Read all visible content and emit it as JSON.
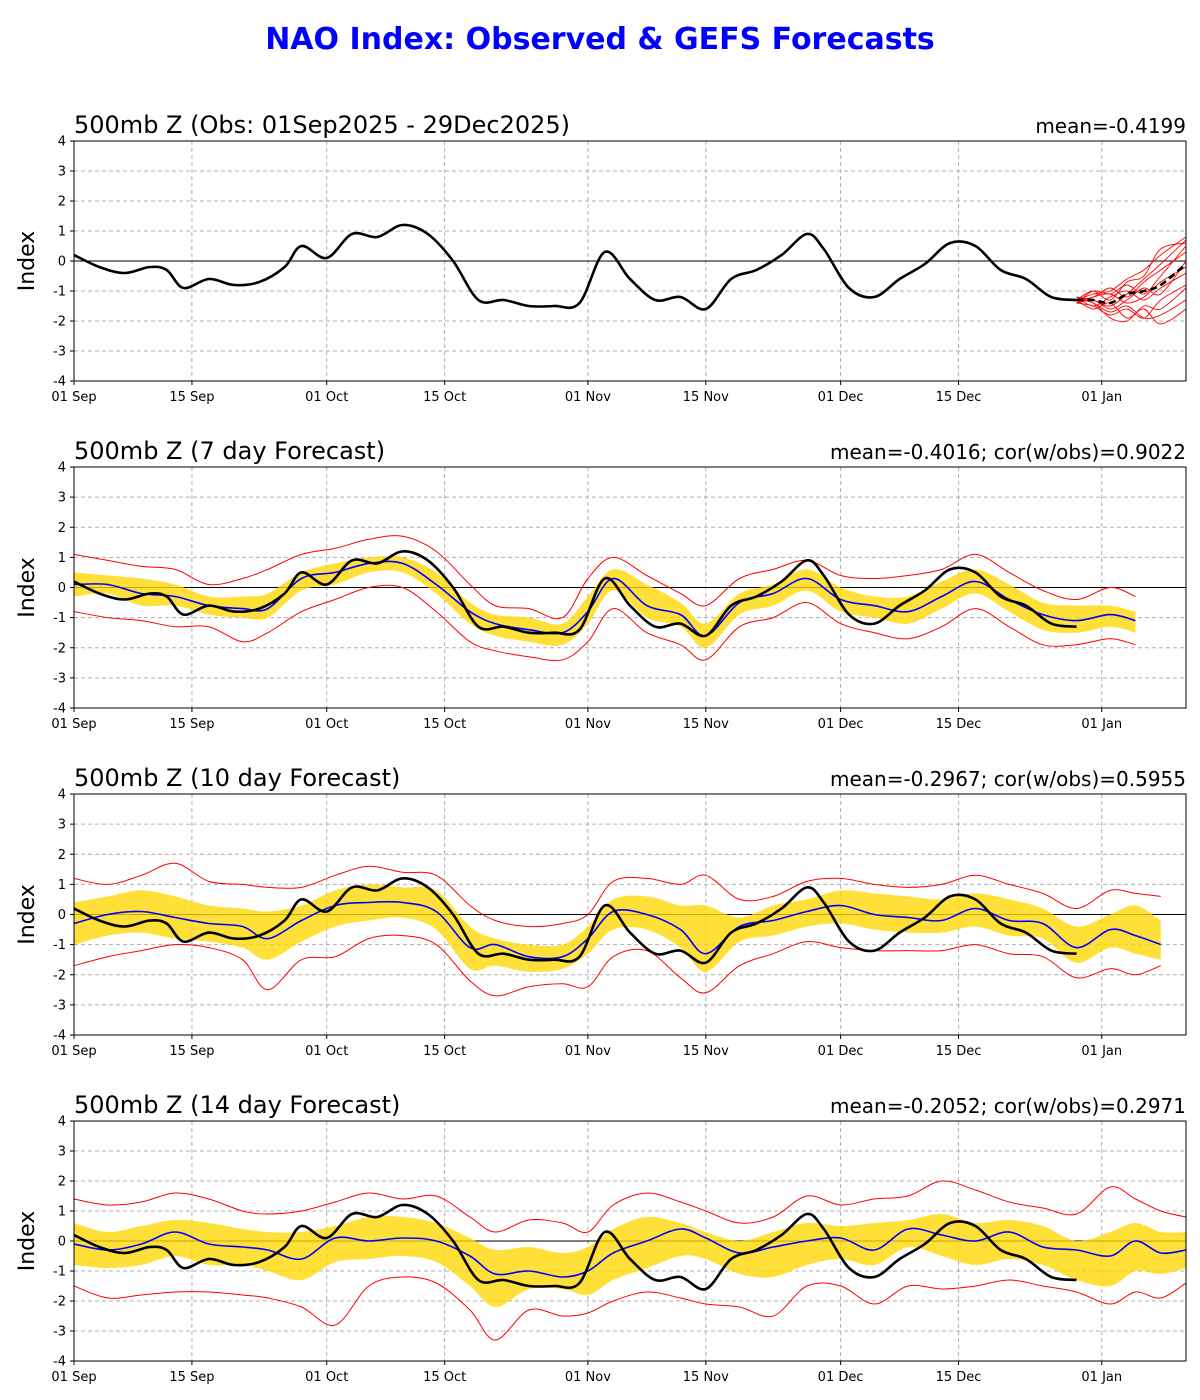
{
  "title": "NAO Index: Observed & GEFS Forecasts",
  "colors": {
    "title": "#0000ff",
    "observed": "#000000",
    "ens_mean": "#0000ff",
    "spread_band": "#ffd700",
    "ens_extremes": "#ff0000",
    "grid": "#b0b0b0"
  },
  "x_ticks": [
    "01 Sep",
    "15 Sep",
    "01 Oct",
    "15 Oct",
    "01 Nov",
    "15 Nov",
    "01 Dec",
    "15 Dec",
    "01 Jan"
  ],
  "chart_data": [
    {
      "type": "line",
      "title": "500mb Z (Obs: 01Sep2025 - 29Dec2025)",
      "stats": "mean=-0.4199",
      "ylabel": "Index",
      "ylim": [
        -4,
        4
      ],
      "yticks": [
        -4,
        -3,
        -2,
        -1,
        0,
        1,
        2,
        3,
        4
      ],
      "x_domain": [
        "2025-09-01",
        "2026-01-11"
      ],
      "grid": true,
      "observed_x": [
        "2025-09-01",
        "2025-09-04",
        "2025-09-07",
        "2025-09-10",
        "2025-09-12",
        "2025-09-14",
        "2025-09-17",
        "2025-09-20",
        "2025-09-23",
        "2025-09-26",
        "2025-09-28",
        "2025-10-01",
        "2025-10-04",
        "2025-10-07",
        "2025-10-10",
        "2025-10-13",
        "2025-10-16",
        "2025-10-19",
        "2025-10-22",
        "2025-10-25",
        "2025-10-28",
        "2025-10-31",
        "2025-11-03",
        "2025-11-06",
        "2025-11-09",
        "2025-11-12",
        "2025-11-15",
        "2025-11-18",
        "2025-11-21",
        "2025-11-24",
        "2025-11-27",
        "2025-11-29",
        "2025-12-02",
        "2025-12-05",
        "2025-12-08",
        "2025-12-11",
        "2025-12-14",
        "2025-12-17",
        "2025-12-20",
        "2025-12-23",
        "2025-12-26",
        "2025-12-29"
      ],
      "observed_y": [
        0.2,
        -0.2,
        -0.4,
        -0.2,
        -0.3,
        -0.9,
        -0.6,
        -0.8,
        -0.7,
        -0.2,
        0.5,
        0.1,
        0.9,
        0.8,
        1.2,
        0.9,
        0.0,
        -1.3,
        -1.3,
        -1.5,
        -1.5,
        -1.4,
        0.3,
        -0.6,
        -1.3,
        -1.2,
        -1.6,
        -0.6,
        -0.3,
        0.2,
        0.9,
        0.4,
        -0.9,
        -1.2,
        -0.6,
        -0.1,
        0.6,
        0.5,
        -0.3,
        -0.6,
        -1.2,
        -1.3
      ],
      "forecast": {
        "x": [
          "2025-12-29",
          "2025-12-31",
          "2026-01-02",
          "2026-01-04",
          "2026-01-06",
          "2026-01-08",
          "2026-01-11"
        ],
        "mean": [
          -1.3,
          -1.3,
          -1.4,
          -1.1,
          -1.0,
          -0.8,
          -0.1
        ],
        "members": [
          [
            -1.4,
            -1.5,
            -1.8,
            -1.6,
            -1.9,
            -1.3,
            -0.8
          ],
          [
            -1.3,
            -1.1,
            -1.0,
            -0.6,
            -0.3,
            0.2,
            0.8
          ],
          [
            -1.2,
            -1.4,
            -1.7,
            -1.5,
            -1.9,
            -1.8,
            -1.3
          ],
          [
            -1.4,
            -1.0,
            -1.1,
            -0.8,
            -1.1,
            -0.5,
            0.5
          ],
          [
            -1.3,
            -1.6,
            -1.4,
            -1.9,
            -1.6,
            -2.1,
            -1.6
          ],
          [
            -1.3,
            -1.2,
            -0.9,
            -1.2,
            -0.7,
            -0.3,
            0.3
          ],
          [
            -1.2,
            -1.5,
            -1.2,
            -1.0,
            -1.3,
            -0.9,
            -0.4
          ],
          [
            -1.4,
            -1.3,
            -1.6,
            -1.3,
            -0.9,
            -1.1,
            0.0
          ],
          [
            -1.3,
            -1.0,
            -1.3,
            -0.7,
            -0.5,
            0.4,
            0.6
          ],
          [
            -1.3,
            -1.4,
            -1.9,
            -2.0,
            -1.5,
            -1.6,
            -0.9
          ],
          [
            -1.4,
            -1.2,
            -1.1,
            -1.4,
            -1.2,
            -0.7,
            -0.2
          ],
          [
            -1.2,
            -1.3,
            -1.5,
            -1.1,
            -0.6,
            -0.1,
            0.7
          ]
        ]
      }
    },
    {
      "type": "line",
      "title": "500mb Z (7 day Forecast)",
      "stats": "mean=-0.4016; cor(w/obs)=0.9022",
      "ylabel": "Index",
      "ylim": [
        -4,
        4
      ],
      "yticks": [
        -4,
        -3,
        -2,
        -1,
        0,
        1,
        2,
        3,
        4
      ],
      "x_domain": [
        "2025-09-01",
        "2026-01-11"
      ],
      "grid": true,
      "x": [
        "2025-09-01",
        "2025-09-05",
        "2025-09-09",
        "2025-09-13",
        "2025-09-17",
        "2025-09-21",
        "2025-09-24",
        "2025-09-28",
        "2025-10-02",
        "2025-10-06",
        "2025-10-10",
        "2025-10-14",
        "2025-10-18",
        "2025-10-21",
        "2025-10-25",
        "2025-10-29",
        "2025-11-01",
        "2025-11-04",
        "2025-11-08",
        "2025-11-12",
        "2025-11-15",
        "2025-11-19",
        "2025-11-23",
        "2025-11-27",
        "2025-12-01",
        "2025-12-05",
        "2025-12-09",
        "2025-12-13",
        "2025-12-17",
        "2025-12-21",
        "2025-12-25",
        "2025-12-29",
        "2026-01-02",
        "2026-01-05"
      ],
      "series": [
        {
          "name": "upper",
          "values": [
            1.1,
            0.9,
            0.7,
            0.6,
            0.1,
            0.3,
            0.6,
            1.1,
            1.3,
            1.6,
            1.7,
            1.2,
            0.1,
            -0.6,
            -0.7,
            -1.0,
            0.3,
            1.0,
            0.4,
            -0.2,
            -0.6,
            0.3,
            0.6,
            0.9,
            0.4,
            0.3,
            0.4,
            0.6,
            1.1,
            0.5,
            -0.1,
            -0.4,
            0.0,
            -0.3
          ]
        },
        {
          "name": "p75",
          "values": [
            0.5,
            0.4,
            0.3,
            0.1,
            -0.3,
            -0.3,
            -0.2,
            0.5,
            0.8,
            1.0,
            1.0,
            0.5,
            -0.5,
            -0.9,
            -1.0,
            -1.2,
            -0.3,
            0.6,
            0.1,
            -0.5,
            -1.2,
            -0.2,
            0.1,
            0.6,
            0.0,
            -0.3,
            -0.3,
            0.2,
            0.6,
            0.1,
            -0.5,
            -0.6,
            -0.6,
            -0.8
          ]
        },
        {
          "name": "mean",
          "values": [
            0.1,
            0.1,
            -0.2,
            -0.3,
            -0.6,
            -0.7,
            -0.7,
            0.3,
            0.5,
            0.8,
            0.8,
            0.1,
            -0.8,
            -1.2,
            -1.4,
            -1.5,
            -0.8,
            0.3,
            -0.6,
            -0.9,
            -1.6,
            -0.5,
            -0.2,
            0.3,
            -0.4,
            -0.6,
            -0.8,
            -0.3,
            0.2,
            -0.4,
            -0.9,
            -1.1,
            -0.9,
            -1.1
          ]
        },
        {
          "name": "p25",
          "values": [
            -0.3,
            -0.2,
            -0.6,
            -0.6,
            -0.9,
            -1.0,
            -1.0,
            -0.1,
            0.1,
            0.5,
            0.5,
            -0.2,
            -1.2,
            -1.6,
            -1.8,
            -1.9,
            -1.2,
            -0.1,
            -1.0,
            -1.3,
            -2.0,
            -0.9,
            -0.6,
            -0.1,
            -0.8,
            -1.0,
            -1.2,
            -0.7,
            -0.2,
            -0.8,
            -1.4,
            -1.5,
            -1.3,
            -1.5
          ]
        },
        {
          "name": "lower",
          "values": [
            -0.8,
            -1.0,
            -1.1,
            -1.3,
            -1.3,
            -1.8,
            -1.5,
            -0.8,
            -0.4,
            0.0,
            0.0,
            -0.8,
            -1.8,
            -2.1,
            -2.3,
            -2.4,
            -1.8,
            -0.7,
            -1.5,
            -1.9,
            -2.4,
            -1.3,
            -1.0,
            -0.5,
            -1.2,
            -1.5,
            -1.7,
            -1.3,
            -0.7,
            -1.3,
            -1.9,
            -1.9,
            -1.7,
            -1.9
          ]
        }
      ],
      "observed_ref": 0
    },
    {
      "type": "line",
      "title": "500mb Z (10 day Forecast)",
      "stats": "mean=-0.2967; cor(w/obs)=0.5955",
      "ylabel": "Index",
      "ylim": [
        -4,
        4
      ],
      "yticks": [
        -4,
        -3,
        -2,
        -1,
        0,
        1,
        2,
        3,
        4
      ],
      "x_domain": [
        "2025-09-01",
        "2026-01-11"
      ],
      "grid": true,
      "x": [
        "2025-09-01",
        "2025-09-05",
        "2025-09-09",
        "2025-09-13",
        "2025-09-17",
        "2025-09-21",
        "2025-09-24",
        "2025-09-28",
        "2025-10-02",
        "2025-10-06",
        "2025-10-10",
        "2025-10-14",
        "2025-10-18",
        "2025-10-21",
        "2025-10-25",
        "2025-10-29",
        "2025-11-01",
        "2025-11-04",
        "2025-11-08",
        "2025-11-12",
        "2025-11-15",
        "2025-11-19",
        "2025-11-23",
        "2025-11-27",
        "2025-12-01",
        "2025-12-05",
        "2025-12-09",
        "2025-12-13",
        "2025-12-17",
        "2025-12-21",
        "2025-12-25",
        "2025-12-29",
        "2026-01-02",
        "2026-01-05",
        "2026-01-08"
      ],
      "series": [
        {
          "name": "upper",
          "values": [
            1.2,
            1.0,
            1.3,
            1.7,
            1.1,
            1.0,
            0.9,
            0.9,
            1.3,
            1.6,
            1.4,
            1.3,
            0.3,
            -0.2,
            -0.4,
            -0.3,
            0.0,
            1.1,
            1.2,
            1.0,
            1.3,
            0.5,
            0.6,
            1.1,
            1.2,
            1.0,
            0.9,
            1.0,
            1.3,
            1.0,
            0.7,
            0.2,
            0.8,
            0.7,
            0.6
          ]
        },
        {
          "name": "p75",
          "values": [
            0.4,
            0.6,
            0.8,
            0.6,
            0.3,
            0.2,
            0.1,
            0.3,
            0.8,
            1.0,
            0.9,
            0.8,
            -0.4,
            -0.8,
            -1.0,
            -1.0,
            -0.4,
            0.5,
            0.6,
            0.3,
            0.3,
            -0.1,
            0.3,
            0.5,
            0.8,
            0.7,
            0.6,
            0.5,
            0.7,
            0.5,
            0.2,
            -0.4,
            0.0,
            0.3,
            -0.2
          ]
        },
        {
          "name": "mean",
          "values": [
            -0.3,
            0.0,
            0.1,
            -0.1,
            -0.3,
            -0.4,
            -0.8,
            -0.2,
            0.3,
            0.4,
            0.4,
            0.1,
            -1.1,
            -1.0,
            -1.4,
            -1.4,
            -0.8,
            0.1,
            0.0,
            -0.5,
            -1.3,
            -0.4,
            -0.2,
            0.1,
            0.3,
            0.0,
            -0.1,
            -0.2,
            0.2,
            -0.2,
            -0.3,
            -1.1,
            -0.5,
            -0.7,
            -1.0
          ]
        },
        {
          "name": "p25",
          "values": [
            -1.0,
            -0.7,
            -0.6,
            -0.8,
            -0.9,
            -1.1,
            -1.5,
            -0.9,
            -0.4,
            -0.2,
            -0.1,
            -0.5,
            -1.8,
            -1.7,
            -1.9,
            -1.8,
            -1.3,
            -0.5,
            -0.5,
            -1.1,
            -1.9,
            -0.9,
            -0.7,
            -0.4,
            -0.3,
            -0.5,
            -0.6,
            -0.6,
            -0.4,
            -0.7,
            -0.8,
            -1.6,
            -1.1,
            -1.3,
            -1.5
          ]
        },
        {
          "name": "lower",
          "values": [
            -1.7,
            -1.4,
            -1.2,
            -1.0,
            -1.1,
            -1.5,
            -2.5,
            -1.5,
            -1.4,
            -0.8,
            -0.7,
            -1.0,
            -2.2,
            -2.7,
            -2.4,
            -2.3,
            -2.4,
            -1.4,
            -1.2,
            -2.1,
            -2.6,
            -1.7,
            -1.3,
            -0.9,
            -1.1,
            -1.2,
            -1.2,
            -1.2,
            -1.0,
            -1.3,
            -1.4,
            -2.1,
            -1.8,
            -2.0,
            -1.7
          ]
        }
      ],
      "observed_ref": 0
    },
    {
      "type": "line",
      "title": "500mb Z (14 day Forecast)",
      "stats": "mean=-0.2052; cor(w/obs)=0.2971",
      "ylabel": "Index",
      "ylim": [
        -4,
        4
      ],
      "yticks": [
        -4,
        -3,
        -2,
        -1,
        0,
        1,
        2,
        3,
        4
      ],
      "x_domain": [
        "2025-09-01",
        "2026-01-11"
      ],
      "grid": true,
      "x": [
        "2025-09-01",
        "2025-09-05",
        "2025-09-09",
        "2025-09-13",
        "2025-09-17",
        "2025-09-21",
        "2025-09-24",
        "2025-09-28",
        "2025-10-02",
        "2025-10-06",
        "2025-10-10",
        "2025-10-14",
        "2025-10-18",
        "2025-10-21",
        "2025-10-25",
        "2025-10-29",
        "2025-11-01",
        "2025-11-04",
        "2025-11-08",
        "2025-11-12",
        "2025-11-15",
        "2025-11-19",
        "2025-11-23",
        "2025-11-27",
        "2025-12-01",
        "2025-12-05",
        "2025-12-09",
        "2025-12-13",
        "2025-12-17",
        "2025-12-21",
        "2025-12-25",
        "2025-12-29",
        "2026-01-02",
        "2026-01-05",
        "2026-01-08",
        "2026-01-11"
      ],
      "series": [
        {
          "name": "upper",
          "values": [
            1.4,
            1.2,
            1.3,
            1.6,
            1.4,
            1.0,
            0.9,
            1.0,
            1.3,
            1.6,
            1.4,
            1.5,
            0.8,
            0.3,
            0.7,
            0.6,
            0.3,
            1.2,
            1.6,
            1.3,
            1.0,
            0.6,
            0.8,
            1.5,
            1.2,
            1.4,
            1.5,
            2.0,
            1.7,
            1.3,
            1.1,
            0.9,
            1.8,
            1.4,
            1.0,
            0.8
          ]
        },
        {
          "name": "p75",
          "values": [
            0.6,
            0.3,
            0.5,
            0.7,
            0.6,
            0.4,
            0.3,
            0.3,
            0.5,
            0.8,
            0.8,
            0.6,
            0.1,
            -0.3,
            -0.2,
            -0.4,
            -0.2,
            0.4,
            0.8,
            0.6,
            0.3,
            0.0,
            0.3,
            0.6,
            0.5,
            0.6,
            0.7,
            0.9,
            0.6,
            0.7,
            0.5,
            0.0,
            0.3,
            0.6,
            0.3,
            0.3
          ]
        },
        {
          "name": "mean",
          "values": [
            -0.1,
            -0.3,
            -0.1,
            0.3,
            -0.1,
            -0.2,
            -0.3,
            -0.6,
            0.1,
            0.0,
            0.1,
            0.0,
            -0.5,
            -1.1,
            -1.0,
            -1.2,
            -1.0,
            -0.4,
            0.0,
            0.4,
            0.1,
            -0.4,
            -0.2,
            0.0,
            0.1,
            -0.3,
            0.4,
            0.2,
            0.0,
            0.3,
            -0.2,
            -0.3,
            -0.5,
            0.0,
            -0.4,
            -0.3
          ]
        },
        {
          "name": "p25",
          "values": [
            -0.8,
            -0.9,
            -0.8,
            -0.5,
            -0.8,
            -0.8,
            -1.0,
            -1.3,
            -0.7,
            -0.6,
            -0.5,
            -0.7,
            -1.5,
            -2.2,
            -1.6,
            -1.6,
            -1.8,
            -1.3,
            -0.9,
            -0.5,
            -0.6,
            -1.1,
            -1.2,
            -0.8,
            -0.6,
            -0.8,
            -0.2,
            -0.5,
            -0.8,
            -0.6,
            -0.8,
            -1.3,
            -1.5,
            -1.0,
            -1.1,
            -0.9
          ]
        },
        {
          "name": "lower",
          "values": [
            -1.5,
            -1.9,
            -1.8,
            -1.7,
            -1.7,
            -1.8,
            -1.9,
            -2.2,
            -2.8,
            -1.5,
            -1.2,
            -1.4,
            -2.3,
            -3.3,
            -2.3,
            -2.5,
            -2.4,
            -2.0,
            -1.7,
            -1.9,
            -2.1,
            -2.2,
            -2.5,
            -1.5,
            -1.5,
            -2.1,
            -1.5,
            -1.6,
            -1.5,
            -1.3,
            -1.5,
            -1.7,
            -2.1,
            -1.7,
            -1.9,
            -1.4
          ]
        }
      ],
      "observed_ref": 0
    }
  ]
}
